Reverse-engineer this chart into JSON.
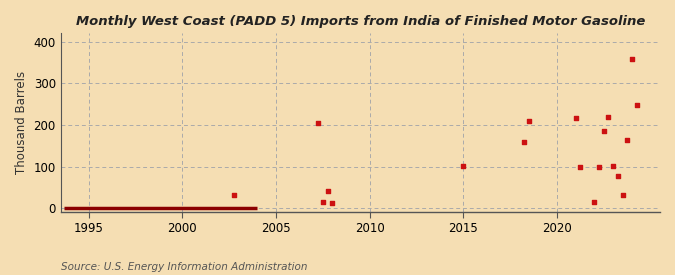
{
  "title": "Monthly West Coast (PADD 5) Imports from India of Finished Motor Gasoline",
  "ylabel": "Thousand Barrels",
  "source": "Source: U.S. Energy Information Administration",
  "background_color": "#f5deb3",
  "plot_bg_color": "#f5deb3",
  "point_color": "#cc1111",
  "line_color": "#8b0000",
  "xlim": [
    1993.5,
    2025.5
  ],
  "ylim": [
    -8,
    420
  ],
  "yticks": [
    0,
    100,
    200,
    300,
    400
  ],
  "xticks": [
    1995,
    2000,
    2005,
    2010,
    2015,
    2020
  ],
  "scatter_x": [
    2002.75,
    2007.25,
    2007.5,
    2007.75,
    2008.0,
    2015.0,
    2018.25,
    2018.5,
    2021.0,
    2021.25,
    2022.0,
    2022.25,
    2022.5,
    2022.75,
    2023.0,
    2023.25,
    2023.5,
    2023.75,
    2024.0,
    2024.25
  ],
  "scatter_y": [
    32,
    205,
    15,
    43,
    12,
    103,
    160,
    210,
    218,
    100,
    15,
    100,
    185,
    220,
    103,
    78,
    32,
    165,
    358,
    248
  ],
  "zeroline_x_start": 1993.7,
  "zeroline_x_end": 2004.0
}
